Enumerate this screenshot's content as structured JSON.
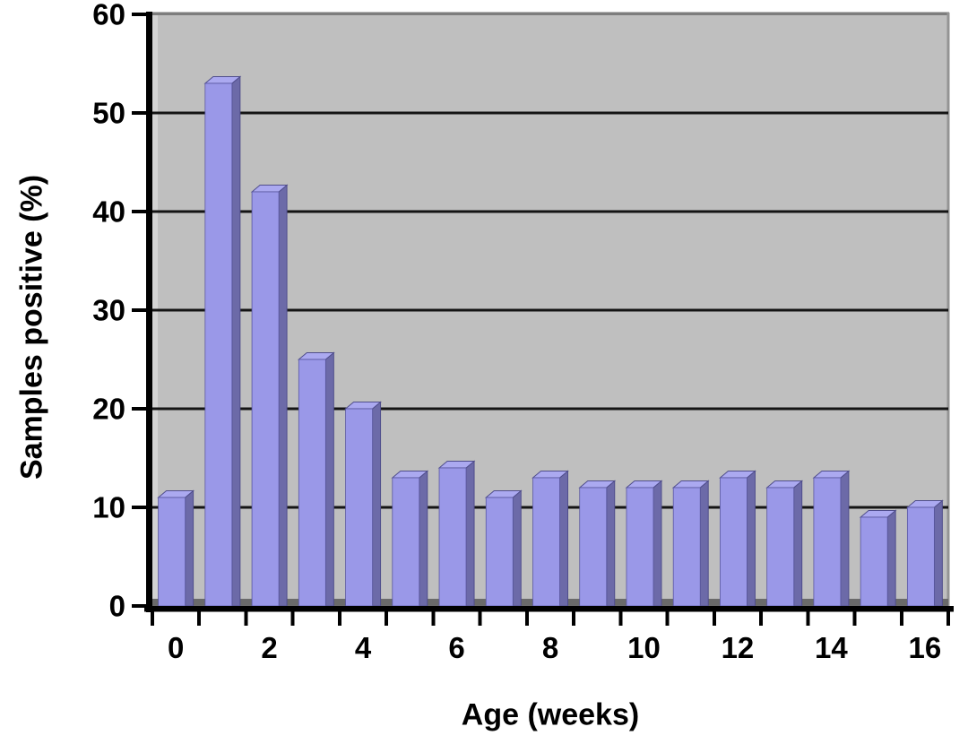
{
  "chart_data": {
    "type": "bar",
    "title": "",
    "xlabel": "Age (weeks)",
    "ylabel": "Samples positive (%)",
    "categories": [
      "0",
      "1",
      "2",
      "3",
      "4",
      "5",
      "6",
      "7",
      "8",
      "9",
      "10",
      "11",
      "12",
      "13",
      "14",
      "15",
      "16"
    ],
    "values": [
      11,
      53,
      42,
      25,
      20,
      13,
      14,
      11,
      13,
      12,
      12,
      12,
      13,
      12,
      13,
      9,
      10
    ],
    "ylim": [
      0,
      60
    ],
    "yticks": [
      0,
      10,
      20,
      30,
      40,
      50,
      60
    ],
    "xtick_labels": [
      "0",
      "2",
      "4",
      "6",
      "8",
      "10",
      "12",
      "14",
      "16"
    ],
    "x_label_every": 2,
    "grid": true,
    "legend": "none",
    "style": "3d-bar",
    "colors": {
      "bar_front": "#9a98e8",
      "bar_side": "#6c6aa8",
      "bar_top": "#aba9f0",
      "bar_edge": "#504e8c",
      "plot_bg": "#bfbfbf",
      "floor": "#6a6a6a",
      "gridline": "#141414",
      "axis": "#000000",
      "wall_border": "#7d7d7d",
      "page_bg": "#ffffff",
      "text": "#000000"
    }
  }
}
